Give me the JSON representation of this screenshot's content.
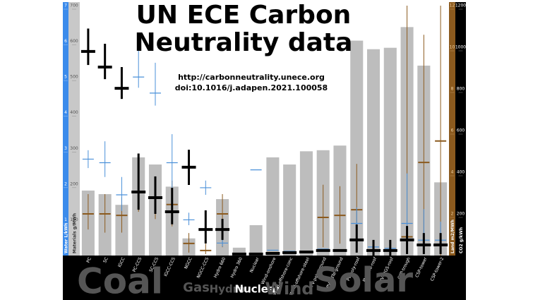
{
  "chart_data": {
    "type": "bar",
    "title": [
      "UN ECE Carbon",
      "Neutrality data"
    ],
    "annotations": [
      "http://carbonneutrality.unece.org",
      "doi:10.1016/j.adapen.2021.100058"
    ],
    "categories": [
      "PC",
      "SC",
      "IGCC",
      "PC-CCS",
      "SC-CCS",
      "IGCC-CCS",
      "NGCC",
      "NGCC-CCS",
      "Hydro 660",
      "Hydro 360",
      "Nuclear",
      "Wind-onshore",
      "Wind-offshore-conc",
      "Wind-offshore-steel",
      "PV-poly-ground",
      "PV-CdTe-ground",
      "PV-poly-roof",
      "PV-CdTe-roof",
      "PV-CIGS-roof",
      "CSP-trough",
      "CSP-tower",
      "CSP-tower-2"
    ],
    "groups": [
      "Coal",
      "Gas",
      "Hydro",
      "Nuclear",
      "Wind",
      "Solar"
    ],
    "axes": [
      {
        "label": "Water L/kWh",
        "lim": [
          0,
          7
        ],
        "ticks": [
          1,
          2,
          3,
          4,
          5,
          6,
          7
        ],
        "color": "#3b8beb"
      },
      {
        "label": "Materials g/MWh",
        "lim": [
          0,
          700
        ],
        "ticks": [
          100,
          200,
          300,
          400,
          500,
          600,
          700
        ],
        "color": "#bdbdbd"
      },
      {
        "label": "Land m2/MWh",
        "lim": [
          0,
          12
        ],
        "ticks": [
          2,
          4,
          6,
          8,
          10,
          12
        ],
        "color": "#8b5a1e"
      },
      {
        "label": "CO2 g/kWh",
        "lim": [
          0,
          1200
        ],
        "ticks": [
          200,
          400,
          600,
          800,
          1000,
          1200
        ],
        "color": "#000000"
      }
    ],
    "series": [
      {
        "name": "Materials g/MWh",
        "type": "bar",
        "axis": 1,
        "color": "#bdbdbd",
        "values": [
          182,
          172,
          142,
          275,
          255,
          193,
          48,
          null,
          158,
          22,
          85,
          275,
          255,
          292,
          295,
          308,
          602,
          578,
          582,
          640,
          532,
          205
        ]
      },
      {
        "name": "Land m2/MWh",
        "type": "cross",
        "axis": 2,
        "color": "#8b5a1e",
        "values": [
          2.0,
          2.0,
          1.93,
          3.05,
          2.8,
          2.45,
          0.58,
          0.24,
          2.0,
          0.07,
          0.07,
          0.14,
          0.17,
          0.17,
          1.83,
          1.93,
          2.2,
          0.24,
          0.24,
          0.9,
          4.47,
          5.5
        ],
        "low": [
          1.25,
          1.1,
          1.1,
          2.1,
          1.75,
          1.4,
          0.14,
          0.07,
          0.4,
          null,
          null,
          null,
          null,
          null,
          0.4,
          0.57,
          0.4,
          null,
          null,
          0.14,
          0.24,
          0
        ],
        "high": [
          2.95,
          2.95,
          2.8,
          4.1,
          3.4,
          3.6,
          1.08,
          0.57,
          2.95,
          null,
          null,
          null,
          null,
          null,
          3.4,
          3.33,
          4.4,
          null,
          null,
          12,
          10.6,
          12
        ]
      },
      {
        "name": "Water L/kWh",
        "type": "cross",
        "axis": 0,
        "color": "#4a90d9",
        "values": [
          2.7,
          2.6,
          1.7,
          5.0,
          4.55,
          2.6,
          1.0,
          1.9,
          0.35,
          null,
          2.4,
          0.15,
          0.12,
          0.12,
          0.18,
          0.15,
          0.9,
          0.24,
          0.2,
          0.9,
          0.43,
          0.43
        ],
        "low": [
          2.45,
          2.2,
          1.25,
          4.7,
          4.2,
          1.8,
          0.85,
          1.7,
          0.25,
          null,
          null,
          null,
          null,
          null,
          null,
          null,
          0.45,
          0.04,
          0.04,
          0.25,
          0.04,
          0.04
        ],
        "high": [
          2.95,
          3.2,
          2.2,
          5.85,
          5.4,
          3.4,
          1.2,
          2.1,
          0.45,
          null,
          null,
          null,
          null,
          null,
          null,
          null,
          1.35,
          0.43,
          0.43,
          2.3,
          1.3,
          0.95
        ]
      },
      {
        "name": "CO2 g/kWh",
        "type": "cross",
        "axis": 3,
        "color": "#000000",
        "values": [
          980,
          905,
          803,
          305,
          278,
          210,
          424,
          125,
          125,
          7,
          7,
          10,
          14,
          17,
          24,
          24,
          75,
          24,
          24,
          75,
          51,
          51
        ],
        "low": [
          915,
          847,
          752,
          220,
          200,
          150,
          339,
          58,
          75,
          null,
          null,
          null,
          null,
          null,
          null,
          null,
          14,
          0,
          0,
          7,
          7,
          7
        ],
        "high": [
          1090,
          1017,
          905,
          490,
          380,
          325,
          508,
          217,
          176,
          null,
          null,
          null,
          null,
          null,
          null,
          null,
          149,
          75,
          75,
          142,
          108,
          108
        ]
      }
    ]
  }
}
